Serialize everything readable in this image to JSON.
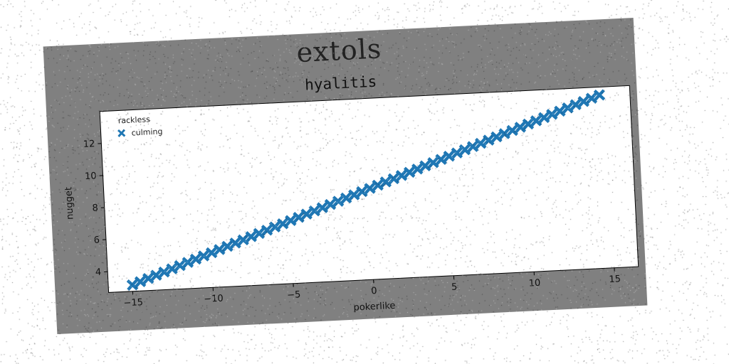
{
  "chart_data": {
    "type": "scatter",
    "suptitle": "extols",
    "title": "hyalitis",
    "xlabel": "pokerlike",
    "ylabel": "nugget",
    "xlim": [
      -16.5,
      16.5
    ],
    "ylim": [
      2.7,
      14
    ],
    "xticks": [
      -15,
      -10,
      -5,
      0,
      5,
      10,
      15
    ],
    "yticks": [
      4,
      6,
      8,
      10,
      12
    ],
    "xtick_labels": [
      "−15",
      "−10",
      "−5",
      "0",
      "5",
      "10",
      "15"
    ],
    "ytick_labels": [
      "4",
      "6",
      "8",
      "10",
      "12"
    ],
    "legend_title": "rackless",
    "legend_position": "upper-left",
    "grid": false,
    "series": [
      {
        "name": "culming",
        "marker": "X",
        "color": "#1f77b4",
        "x_start": -15.0,
        "x_end": 14.6,
        "num_points": 60,
        "y_start": 3.1,
        "y_end": 13.5
      }
    ]
  },
  "colors": {
    "figure_background": "#808080",
    "axes_background": "#ffffff",
    "marker": "#1f77b4"
  }
}
